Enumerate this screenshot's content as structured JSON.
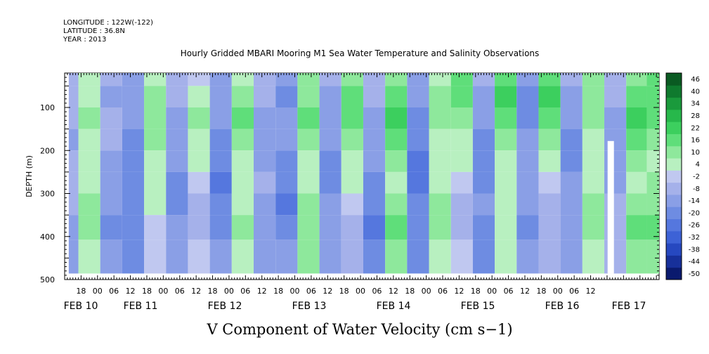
{
  "header": {
    "longitude": "LONGITUDE : 122W(-122)",
    "latitude": "LATITUDE : 36.8N",
    "year": "YEAR : 2013"
  },
  "chart_data": {
    "type": "heatmap",
    "title": "Hourly Gridded MBARI Mooring M1 Sea Water Temperature and Salinity Observations",
    "xlabel": "V Component of Water Velocity (cm s−1)",
    "ylabel": "DEPTH (m)",
    "ylim": [
      500,
      20
    ],
    "yticks": [
      100,
      200,
      300,
      400,
      500
    ],
    "x_range_hours_from_feb10_00": [
      -12,
      205
    ],
    "hour_tick_labels": [
      "18",
      "00",
      "06",
      "12",
      "18",
      "00",
      "06",
      "12",
      "18",
      "00",
      "06",
      "12",
      "18",
      "00",
      "06",
      "12",
      "18",
      "00",
      "06",
      "12",
      "18",
      "00",
      "06",
      "12",
      "18",
      "00",
      "06",
      "12",
      "18",
      "00",
      "06",
      "12"
    ],
    "date_labels": [
      "FEB 10",
      "FEB 11",
      "FEB 12",
      "FEB 13",
      "FEB 14",
      "FEB 15",
      "FEB 16",
      "FEB 17"
    ],
    "colorbar": {
      "levels": [
        -50,
        -44,
        -38,
        -32,
        -26,
        -20,
        -14,
        -8,
        -2,
        4,
        10,
        16,
        22,
        28,
        34,
        40,
        46
      ],
      "labels": [
        "46",
        "40",
        "34",
        "28",
        "22",
        "16",
        "10",
        "4",
        "-2",
        "-8",
        "-14",
        "-20",
        "-26",
        "-32",
        "-38",
        "-44",
        "-50"
      ],
      "colors": [
        "#0a1a6e",
        "#17309a",
        "#2648c0",
        "#3d62d6",
        "#5577de",
        "#6e8ce2",
        "#8a9fe6",
        "#a5b1ea",
        "#c0c8f0",
        "#b8f0c0",
        "#8ee89c",
        "#5fde7a",
        "#3ccf5e",
        "#27b84b",
        "#1a9a3c",
        "#0f7a2e",
        "#0a5a22"
      ],
      "bar_colors": [
        "#0a1a6e",
        "#17309a",
        "#2648c0",
        "#3d62d6",
        "#5577de",
        "#6e8ce2",
        "#8a9fe6",
        "#a5b1ea",
        "#c0c8f0",
        "#b8f0c0",
        "#8ee89c",
        "#5fde7a",
        "#3ccf5e",
        "#27b84b",
        "#1a9a3c",
        "#0f7a2e",
        "#0a5a22"
      ]
    },
    "v_profile_columns": [
      {
        "hour": -11,
        "v": [
          -4,
          -6,
          -8,
          -10,
          -6,
          -4,
          -8,
          -10,
          -12
        ]
      },
      {
        "hour": -3,
        "v": [
          4,
          8,
          10,
          6,
          4,
          8,
          12,
          10,
          6
        ]
      },
      {
        "hour": 5,
        "v": [
          -8,
          -10,
          -6,
          -8,
          -12,
          -10,
          -14,
          -16,
          -14
        ]
      },
      {
        "hour": 13,
        "v": [
          -10,
          -12,
          -14,
          -18,
          -20,
          -16,
          -18,
          -20,
          -16
        ]
      },
      {
        "hour": 21,
        "v": [
          6,
          10,
          14,
          12,
          8,
          6,
          4,
          2,
          -2
        ]
      },
      {
        "hour": 29,
        "v": [
          -6,
          -8,
          -10,
          -12,
          -14,
          -16,
          -18,
          -12,
          -10
        ]
      },
      {
        "hour": 37,
        "v": [
          2,
          6,
          10,
          8,
          4,
          -2,
          -6,
          -4,
          2
        ]
      },
      {
        "hour": 45,
        "v": [
          -10,
          -12,
          -14,
          -16,
          -20,
          -22,
          -18,
          -16,
          -14
        ]
      },
      {
        "hour": 53,
        "v": [
          8,
          12,
          16,
          10,
          6,
          4,
          8,
          10,
          6
        ]
      },
      {
        "hour": 61,
        "v": [
          -6,
          -8,
          -12,
          -14,
          -10,
          -8,
          -10,
          -12,
          -10
        ]
      },
      {
        "hour": 69,
        "v": [
          -14,
          -16,
          -12,
          -10,
          -18,
          -20,
          -22,
          -18,
          -14
        ]
      },
      {
        "hour": 77,
        "v": [
          10,
          14,
          18,
          12,
          8,
          6,
          10,
          14,
          10
        ]
      },
      {
        "hour": 85,
        "v": [
          -8,
          -12,
          -10,
          -14,
          -16,
          -18,
          -14,
          -12,
          -10
        ]
      },
      {
        "hour": 93,
        "v": [
          12,
          16,
          20,
          14,
          8,
          4,
          -2,
          -6,
          -8
        ]
      },
      {
        "hour": 101,
        "v": [
          -4,
          -8,
          -12,
          -10,
          -14,
          -18,
          -20,
          -22,
          -16
        ]
      },
      {
        "hour": 109,
        "v": [
          14,
          18,
          22,
          16,
          12,
          8,
          14,
          18,
          12
        ]
      },
      {
        "hour": 117,
        "v": [
          -10,
          -14,
          -16,
          -20,
          -22,
          -24,
          -20,
          -18,
          -16
        ]
      },
      {
        "hour": 125,
        "v": [
          8,
          12,
          10,
          6,
          4,
          8,
          12,
          10,
          6
        ]
      },
      {
        "hour": 133,
        "v": [
          16,
          20,
          14,
          8,
          4,
          -2,
          -6,
          -4,
          -2
        ]
      },
      {
        "hour": 141,
        "v": [
          -6,
          -10,
          -14,
          -18,
          -20,
          -16,
          -14,
          -18,
          -20
        ]
      },
      {
        "hour": 149,
        "v": [
          18,
          22,
          16,
          10,
          6,
          4,
          8,
          6,
          4
        ]
      },
      {
        "hour": 157,
        "v": [
          -12,
          -16,
          -18,
          -14,
          -12,
          -10,
          -14,
          -16,
          -12
        ]
      },
      {
        "hour": 165,
        "v": [
          20,
          24,
          18,
          12,
          6,
          2,
          -4,
          -8,
          -6
        ]
      },
      {
        "hour": 173,
        "v": [
          -8,
          -10,
          -14,
          -18,
          -16,
          -12,
          -10,
          -12,
          -14
        ]
      },
      {
        "hour": 181,
        "v": [
          10,
          14,
          12,
          8,
          4,
          6,
          10,
          12,
          8
        ]
      },
      {
        "hour": 189,
        "v": [
          -6,
          -8,
          -10,
          -12,
          -14,
          -10,
          -8,
          -6,
          -4
        ]
      },
      {
        "hour": 197,
        "v": [
          12,
          18,
          22,
          16,
          10,
          8,
          12,
          16,
          14
        ]
      },
      {
        "hour": 204,
        "v": [
          18,
          20,
          16,
          12,
          8,
          10,
          14,
          16,
          12
        ]
      }
    ],
    "v_profile_depths": [
      25,
      75,
      125,
      175,
      225,
      275,
      325,
      375,
      440
    ]
  }
}
